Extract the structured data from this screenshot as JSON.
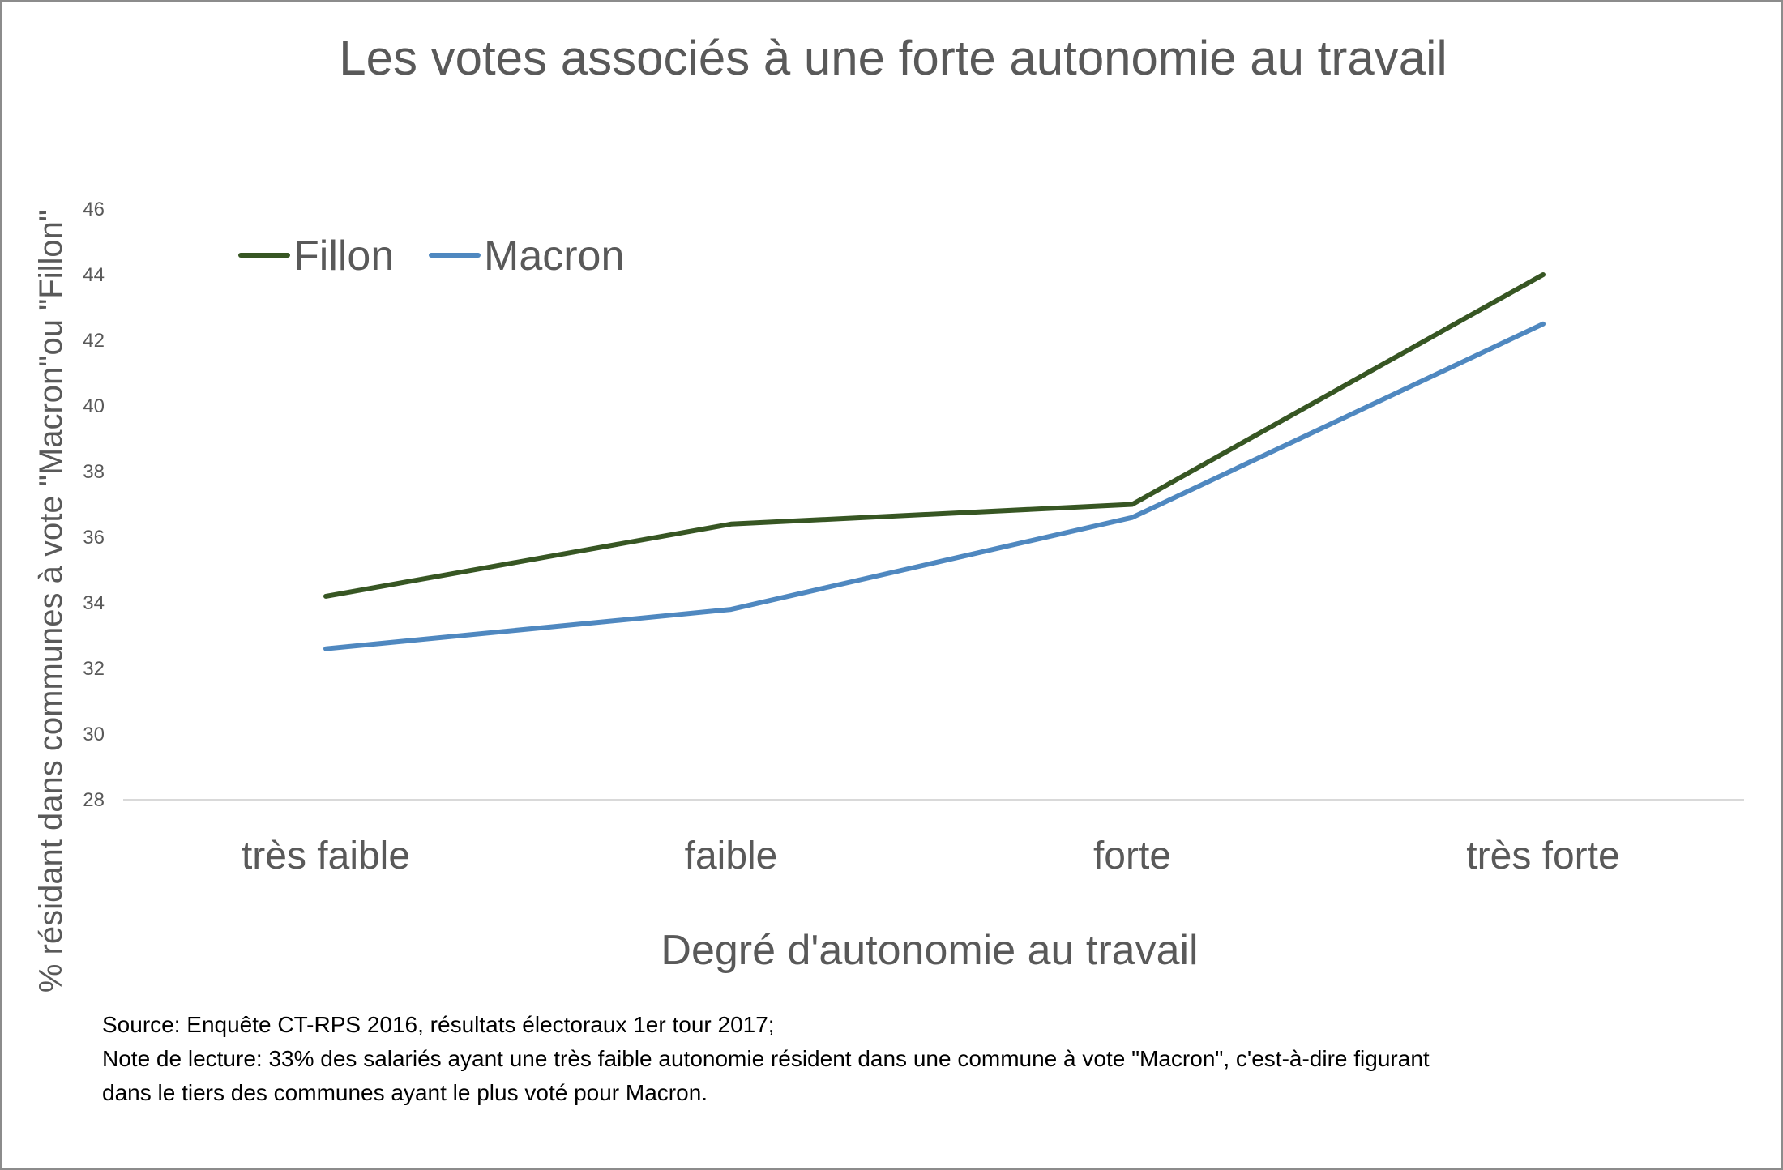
{
  "chart_data": {
    "type": "line",
    "title": "Les votes associés à une forte autonomie au travail",
    "xlabel": "Degré d'autonomie au travail",
    "ylabel": "% résidant dans communes à vote \"Macron\"ou  \"Fillon\"",
    "categories": [
      "très faible",
      "faible",
      "forte",
      "très forte"
    ],
    "ylim": [
      28,
      46
    ],
    "yticks": [
      "28",
      "30",
      "32",
      "34",
      "36",
      "38",
      "40",
      "42",
      "44",
      "46"
    ],
    "grid": false,
    "legend_position": "top-left",
    "series": [
      {
        "name": "Fillon",
        "color": "#375623",
        "values": [
          34.2,
          36.4,
          37.0,
          44.0
        ]
      },
      {
        "name": "Macron",
        "color": "#4f88c0",
        "values": [
          32.6,
          33.8,
          36.6,
          42.5
        ]
      }
    ]
  },
  "notes": {
    "source": "Source: Enquête CT-RPS 2016, résultats électoraux 1er tour 2017;",
    "reading_note_line1": "Note de lecture: 33% des salariés ayant une très faible autonomie résident dans  une commune à vote \"Macron\", c'est-à-dire figurant",
    "reading_note_line2": "dans le tiers des communes ayant le plus voté pour Macron."
  }
}
